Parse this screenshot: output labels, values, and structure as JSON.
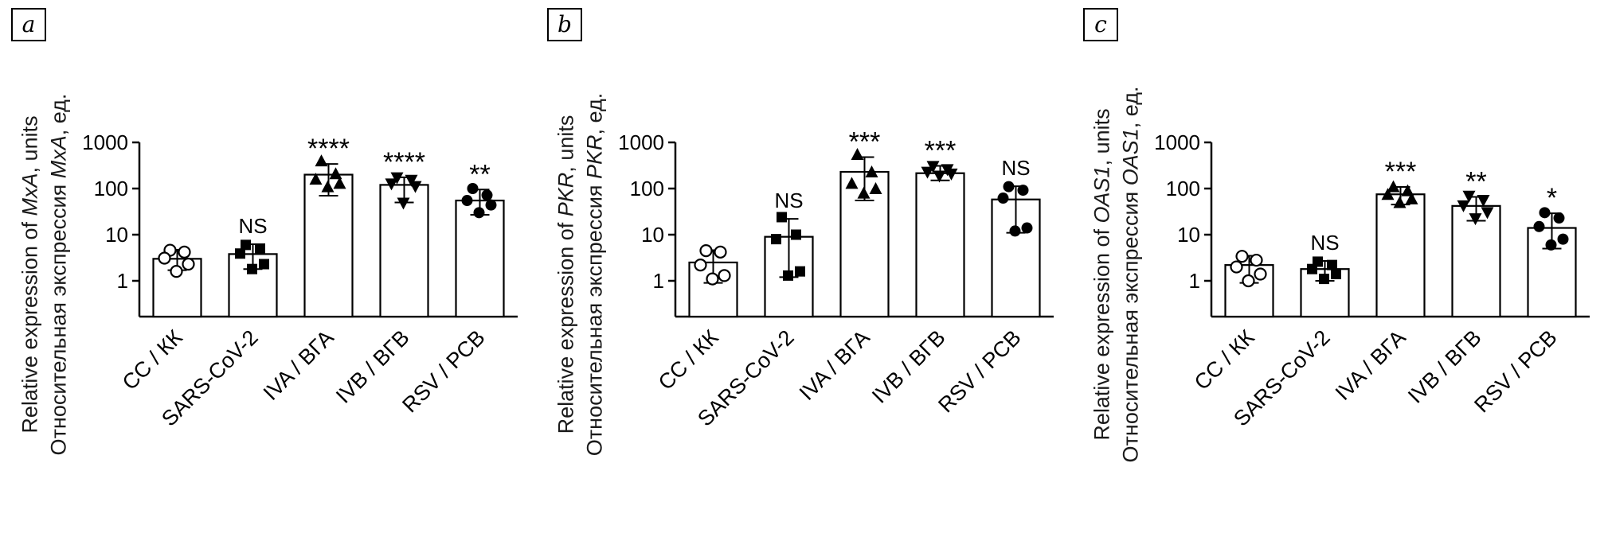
{
  "colors": {
    "ink": "#000000",
    "bar_fill": "#ffffff",
    "background": "#ffffff"
  },
  "chart_data": [
    {
      "type": "bar",
      "panel_label": "a",
      "ylabel_en_prefix": "Relative expression of ",
      "gene": "MxA",
      "ylabel_en_suffix": ", units",
      "ylabel_ru_prefix": "Относительная экспрессия ",
      "ylabel_ru_suffix": ", ед.",
      "log_scale": true,
      "ylim": [
        1,
        1000
      ],
      "yticks": [
        1,
        10,
        100,
        1000
      ],
      "categories": [
        "CC / КК",
        "SARS-CoV-2",
        "IVA / ВГА",
        "IVB / ВГВ",
        "RSV / РСВ"
      ],
      "markers": [
        "open-circle",
        "square",
        "triangle-up",
        "triangle-down",
        "circle"
      ],
      "bars": [
        3.0,
        3.8,
        200,
        120,
        55
      ],
      "err_lo": [
        1.7,
        1.8,
        70,
        50,
        27
      ],
      "err_hi": [
        4.7,
        6.2,
        340,
        175,
        95
      ],
      "points": [
        [
          4.6,
          4.2,
          3.1,
          2.3,
          1.6
        ],
        [
          6.0,
          5.0,
          3.9,
          2.3,
          1.8
        ],
        [
          400,
          210,
          160,
          130,
          110
        ],
        [
          170,
          150,
          125,
          110,
          48
        ],
        [
          100,
          72,
          55,
          44,
          30
        ]
      ],
      "significance": [
        "",
        "NS",
        "****",
        "****",
        "**"
      ]
    },
    {
      "type": "bar",
      "panel_label": "b",
      "ylabel_en_prefix": "Relative expression of ",
      "gene": "PKR",
      "ylabel_en_suffix": ", units",
      "ylabel_ru_prefix": "Относительная экспрессия ",
      "ylabel_ru_suffix": ", ед.",
      "log_scale": true,
      "ylim": [
        1,
        1000
      ],
      "yticks": [
        1,
        10,
        100,
        1000
      ],
      "categories": [
        "CC / КК",
        "SARS-CoV-2",
        "IVA / ВГА",
        "IVB / ВГВ",
        "RSV / РСВ"
      ],
      "markers": [
        "open-circle",
        "square",
        "triangle-up",
        "triangle-down",
        "circle"
      ],
      "bars": [
        2.5,
        9,
        230,
        215,
        58
      ],
      "err_lo": [
        0.9,
        1.2,
        55,
        150,
        11
      ],
      "err_hi": [
        4.6,
        22,
        480,
        310,
        112
      ],
      "points": [
        [
          4.5,
          4.2,
          2.2,
          1.3,
          1.1
        ],
        [
          24,
          10,
          8,
          1.6,
          1.3
        ],
        [
          550,
          230,
          130,
          100,
          80
        ],
        [
          300,
          255,
          225,
          205,
          185
        ],
        [
          110,
          92,
          62,
          14,
          12
        ]
      ],
      "significance": [
        "",
        "NS",
        "***",
        "***",
        "NS"
      ]
    },
    {
      "type": "bar",
      "panel_label": "c",
      "ylabel_en_prefix": "Relative expression of ",
      "gene": "OAS1",
      "ylabel_en_suffix": ", units",
      "ylabel_ru_prefix": "Относительная экспрессия ",
      "ylabel_ru_suffix": ", ед.",
      "log_scale": true,
      "ylim": [
        1,
        1000
      ],
      "yticks": [
        1,
        10,
        100,
        1000
      ],
      "categories": [
        "CC / КК",
        "SARS-CoV-2",
        "IVA / ВГА",
        "IVB / ВГВ",
        "RSV / РСВ"
      ],
      "markers": [
        "open-circle",
        "square",
        "triangle-up",
        "triangle-down",
        "circle"
      ],
      "bars": [
        2.2,
        1.8,
        75,
        42,
        14
      ],
      "err_lo": [
        0.9,
        1.0,
        45,
        20,
        5
      ],
      "err_hi": [
        3.5,
        2.7,
        108,
        66,
        29
      ],
      "points": [
        [
          3.4,
          2.8,
          2.0,
          1.4,
          1.0
        ],
        [
          2.6,
          2.2,
          1.8,
          1.4,
          1.1
        ],
        [
          110,
          90,
          75,
          60,
          50
        ],
        [
          68,
          55,
          42,
          30,
          22
        ],
        [
          30,
          23,
          15,
          8,
          6
        ]
      ],
      "significance": [
        "",
        "NS",
        "***",
        "**",
        "*"
      ]
    }
  ]
}
